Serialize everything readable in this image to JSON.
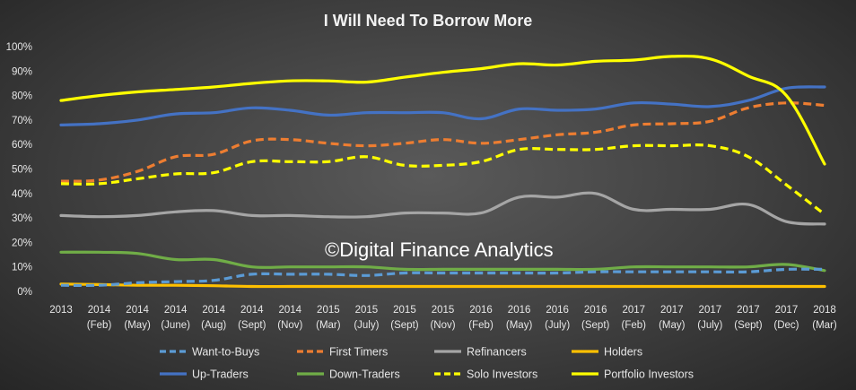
{
  "chart_data": {
    "type": "line",
    "title": "I Will Need To Borrow More",
    "watermark": "©Digital Finance Analytics",
    "xlabel": "",
    "ylabel": "",
    "ylim": [
      0,
      100
    ],
    "y_ticks": [
      "0%",
      "10%",
      "20%",
      "30%",
      "40%",
      "50%",
      "60%",
      "70%",
      "80%",
      "90%",
      "100%"
    ],
    "categories": [
      {
        "line1": "2013",
        "line2": ""
      },
      {
        "line1": "2014",
        "line2": "(Feb)"
      },
      {
        "line1": "2014",
        "line2": "(May)"
      },
      {
        "line1": "2014",
        "line2": "(June)"
      },
      {
        "line1": "2014",
        "line2": "(Aug)"
      },
      {
        "line1": "2014",
        "line2": "(Sept)"
      },
      {
        "line1": "2014",
        "line2": "(Nov)"
      },
      {
        "line1": "2015",
        "line2": "(Mar)"
      },
      {
        "line1": "2015",
        "line2": "(July)"
      },
      {
        "line1": "2015",
        "line2": "(Sept)"
      },
      {
        "line1": "2015",
        "line2": "(Nov)"
      },
      {
        "line1": "2016",
        "line2": "(Feb)"
      },
      {
        "line1": "2016",
        "line2": "(May)"
      },
      {
        "line1": "2016",
        "line2": "(July)"
      },
      {
        "line1": "2016",
        "line2": "(Sept)"
      },
      {
        "line1": "2017",
        "line2": "(Feb)"
      },
      {
        "line1": "2017",
        "line2": "(May)"
      },
      {
        "line1": "2017",
        "line2": "(July)"
      },
      {
        "line1": "2017",
        "line2": "(Sept)"
      },
      {
        "line1": "2017",
        "line2": "(Dec)"
      },
      {
        "line1": "2018",
        "line2": "(Mar)"
      }
    ],
    "grid": false,
    "legend_placement": "bottom",
    "series": [
      {
        "name": "Want-to-Buys",
        "color": "#5b9bd5",
        "dashed": true,
        "values": [
          2.5,
          2.5,
          3.5,
          4,
          4.5,
          7,
          7,
          7,
          6.5,
          7.5,
          7.5,
          7.5,
          7.5,
          7.5,
          8,
          8,
          8,
          8,
          8,
          9,
          9
        ]
      },
      {
        "name": "First Timers",
        "color": "#ed7d31",
        "dashed": true,
        "values": [
          45,
          45.5,
          49,
          55,
          56,
          61.5,
          62,
          60.5,
          59.5,
          60.5,
          62,
          60.5,
          62,
          64,
          65,
          68,
          68.5,
          69.5,
          75,
          77,
          76
        ]
      },
      {
        "name": "Refinancers",
        "color": "#a5a5a5",
        "dashed": false,
        "values": [
          31,
          30.5,
          31,
          32.5,
          33,
          31,
          31,
          30.5,
          30.5,
          32,
          32,
          32,
          38.5,
          38.5,
          40,
          33.5,
          33.5,
          33.5,
          35.5,
          28.5,
          27.5
        ]
      },
      {
        "name": "Holders",
        "color": "#ffc000",
        "dashed": false,
        "values": [
          3,
          2.8,
          2.5,
          2.5,
          2.3,
          2,
          2,
          2,
          2,
          2,
          2,
          2,
          2,
          2,
          2,
          2,
          2,
          2,
          2,
          2,
          2
        ]
      },
      {
        "name": "Up-Traders",
        "color": "#4472c4",
        "dashed": false,
        "values": [
          68,
          68.5,
          70,
          72.5,
          73,
          75,
          74,
          72,
          73,
          73,
          73,
          70.5,
          74.5,
          74,
          74.5,
          77,
          76.5,
          75.5,
          78,
          83,
          83.5
        ]
      },
      {
        "name": "Down-Traders",
        "color": "#70ad47",
        "dashed": false,
        "values": [
          16,
          16,
          15.5,
          13,
          13,
          10,
          10,
          10,
          10,
          9,
          9,
          9,
          9,
          9,
          9,
          10,
          10,
          10,
          10,
          11,
          8.5
        ]
      },
      {
        "name": "Solo Investors",
        "color": "#ffff00",
        "dashed": true,
        "values": [
          44,
          44,
          46,
          48,
          48.5,
          53,
          53,
          53,
          55,
          51.5,
          51.5,
          53,
          58,
          58,
          58,
          59.5,
          59.5,
          59.5,
          55,
          43.5,
          31.5
        ]
      },
      {
        "name": "Portfolio Investors",
        "color": "#ffff00",
        "dashed": false,
        "values": [
          78,
          80,
          81.5,
          82.5,
          83.5,
          85,
          86,
          86,
          85.5,
          87.5,
          89.5,
          91,
          93,
          92.5,
          94,
          94.5,
          96,
          95,
          88,
          80,
          52
        ]
      }
    ]
  }
}
